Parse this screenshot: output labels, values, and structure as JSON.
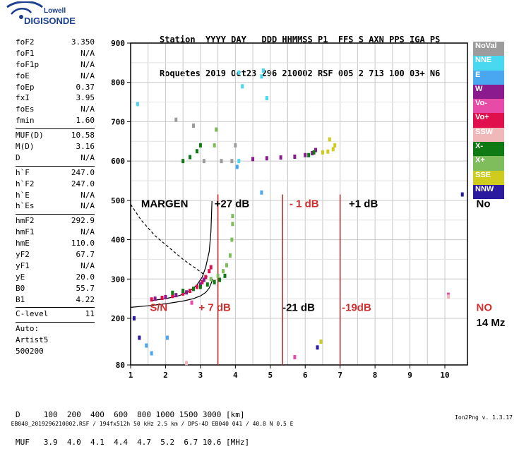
{
  "logo": {
    "line1": "Lowell",
    "line2": "DIGISONDE"
  },
  "header": {
    "line1": "Station  YYYY DAY   DDD HHMMSS P1  FFS S AXN PPS IGA PS",
    "line2": "Roquetes 2019 Oct23 296 210002 RSF 005 2 713 100 03+ N6"
  },
  "params": [
    {
      "name": "foF2",
      "value": "3.350"
    },
    {
      "name": "foF1",
      "value": "N/A"
    },
    {
      "name": "foF1p",
      "value": "N/A"
    },
    {
      "name": "foE",
      "value": "N/A"
    },
    {
      "name": "foEp",
      "value": "0.37"
    },
    {
      "name": "fxI",
      "value": "3.95"
    },
    {
      "name": "foEs",
      "value": "N/A"
    },
    {
      "name": "fmin",
      "value": "1.60"
    },
    {
      "sep": true
    },
    {
      "name": "MUF(D)",
      "value": "10.58"
    },
    {
      "name": "M(D)",
      "value": "3.16"
    },
    {
      "name": "D",
      "value": "N/A"
    },
    {
      "sep": true
    },
    {
      "name": "h`F",
      "value": "247.0"
    },
    {
      "name": "h`F2",
      "value": "247.0"
    },
    {
      "name": "h`E",
      "value": "N/A"
    },
    {
      "name": "h`Es",
      "value": "N/A"
    },
    {
      "sep": true
    },
    {
      "name": "hmF2",
      "value": "292.9"
    },
    {
      "name": "hmF1",
      "value": "N/A"
    },
    {
      "name": "hmE",
      "value": "110.0"
    },
    {
      "name": "yF2",
      "value": "67.7"
    },
    {
      "name": "yF1",
      "value": "N/A"
    },
    {
      "name": "yE",
      "value": "20.0"
    },
    {
      "name": "B0",
      "value": "55.7"
    },
    {
      "name": "B1",
      "value": "4.22"
    },
    {
      "sep": true
    },
    {
      "name": "C-level",
      "value": "11"
    },
    {
      "sep": true
    },
    {
      "name": "Auto:",
      "value": ""
    },
    {
      "name": "Artist5",
      "value": ""
    },
    {
      "name": "500200",
      "value": ""
    }
  ],
  "legend": [
    {
      "label": "NoVal",
      "color": "#9c9c9c"
    },
    {
      "label": "NNE",
      "color": "#48d8f0"
    },
    {
      "label": "E",
      "color": "#49a7f2"
    },
    {
      "label": "W",
      "color": "#8b1a8e"
    },
    {
      "label": "Vo-",
      "color": "#e84aa8"
    },
    {
      "label": "Vo+",
      "color": "#e0104c"
    },
    {
      "label": "SSW",
      "color": "#f0b8b8"
    },
    {
      "label": "X-",
      "color": "#0f7a14"
    },
    {
      "label": "X+",
      "color": "#7ebc5c"
    },
    {
      "label": "SSE",
      "color": "#cfcc1e"
    },
    {
      "label": "NNW",
      "color": "#2a1aa0"
    }
  ],
  "bottom_table": {
    "d_line": "D     100  200  400  600  800 1000 1500 3000 [km]",
    "muf_line": "MUF   3.9  4.0  4.1  4.4  4.7  5.2  6.7 10.6 [MHz]"
  },
  "footer": {
    "left": "EB040_2019296210002.RSF / 194fx512h 50 kHz 2.5 km / DPS-4D EB040 041 / 40.8 N 0.5 E",
    "right": "Ion2Png v. 1.3.17"
  },
  "chart_data": {
    "type": "scatter",
    "x_ticks": [
      1,
      2,
      3,
      4,
      5,
      6,
      7,
      8,
      9,
      10
    ],
    "y_ticks": [
      80,
      200,
      300,
      400,
      500,
      600,
      700,
      800,
      900
    ],
    "x_range": [
      1,
      10.6
    ],
    "y_range": [
      80,
      900
    ],
    "grid": true,
    "vertical_markers": [
      {
        "x": 3.5,
        "color": "#b22222"
      },
      {
        "x": 5.35,
        "color": "#b22222"
      },
      {
        "x": 7.0,
        "color": "#b22222"
      }
    ],
    "annotations": [
      {
        "text": "MARGEN",
        "x": 1.3,
        "y": 483,
        "color": "#000000"
      },
      {
        "text": "+27 dB",
        "x": 3.4,
        "y": 483,
        "color": "#000000"
      },
      {
        "text": "- 1 dB",
        "x": 5.55,
        "y": 483,
        "color": "#d03030"
      },
      {
        "text": "+1 dB",
        "x": 7.25,
        "y": 483,
        "color": "#000000"
      },
      {
        "text": "No",
        "x": 10.9,
        "y": 483,
        "color": "#000000"
      },
      {
        "text": "S/N",
        "x": 1.55,
        "y": 219,
        "color": "#d03030"
      },
      {
        "text": "+ 7 dB",
        "x": 2.95,
        "y": 219,
        "color": "#d03030"
      },
      {
        "text": "-21 dB",
        "x": 5.35,
        "y": 219,
        "color": "#000000"
      },
      {
        "text": "-19dB",
        "x": 7.05,
        "y": 219,
        "color": "#d03030"
      },
      {
        "text": "NO",
        "x": 10.9,
        "y": 219,
        "color": "#d03030"
      },
      {
        "text": "14 Mz",
        "x": 10.9,
        "y": 180,
        "color": "#000000"
      }
    ],
    "profile_curve": [
      {
        "x": 1.0,
        "y": 228
      },
      {
        "x": 1.5,
        "y": 232
      },
      {
        "x": 2.0,
        "y": 237
      },
      {
        "x": 2.5,
        "y": 244
      },
      {
        "x": 2.8,
        "y": 250
      },
      {
        "x": 3.0,
        "y": 257
      },
      {
        "x": 3.15,
        "y": 266
      },
      {
        "x": 3.25,
        "y": 277
      },
      {
        "x": 3.32,
        "y": 292
      },
      {
        "x": 3.35,
        "y": 300
      }
    ],
    "o_trace_curve": [
      {
        "x": 1.6,
        "y": 245
      },
      {
        "x": 2.0,
        "y": 250
      },
      {
        "x": 2.4,
        "y": 258
      },
      {
        "x": 2.7,
        "y": 270
      },
      {
        "x": 2.9,
        "y": 285
      },
      {
        "x": 3.05,
        "y": 305
      },
      {
        "x": 3.15,
        "y": 330
      },
      {
        "x": 3.25,
        "y": 370
      },
      {
        "x": 3.3,
        "y": 420
      },
      {
        "x": 3.33,
        "y": 498
      }
    ],
    "dashed_curve": [
      {
        "x": 1.0,
        "y": 490
      },
      {
        "x": 1.3,
        "y": 450
      },
      {
        "x": 1.7,
        "y": 410
      },
      {
        "x": 2.1,
        "y": 380
      },
      {
        "x": 2.5,
        "y": 350
      },
      {
        "x": 2.9,
        "y": 325
      },
      {
        "x": 3.2,
        "y": 305
      }
    ],
    "series": [
      {
        "polarization": "Vo+",
        "color": "#e0104c",
        "points": [
          {
            "x": 1.6,
            "y": 248
          },
          {
            "x": 1.9,
            "y": 252
          },
          {
            "x": 2.2,
            "y": 257
          },
          {
            "x": 2.5,
            "y": 263
          },
          {
            "x": 2.7,
            "y": 270
          },
          {
            "x": 2.9,
            "y": 280
          },
          {
            "x": 3.05,
            "y": 292
          },
          {
            "x": 3.15,
            "y": 305
          },
          {
            "x": 3.25,
            "y": 320
          },
          {
            "x": 3.3,
            "y": 330
          }
        ]
      },
      {
        "polarization": "W",
        "color": "#8b1a8e",
        "points": [
          {
            "x": 1.7,
            "y": 250
          },
          {
            "x": 2.0,
            "y": 254
          },
          {
            "x": 2.3,
            "y": 259
          },
          {
            "x": 2.6,
            "y": 266
          },
          {
            "x": 2.8,
            "y": 275
          },
          {
            "x": 3.0,
            "y": 286
          },
          {
            "x": 3.1,
            "y": 298
          },
          {
            "x": 4.5,
            "y": 605
          },
          {
            "x": 4.9,
            "y": 607
          },
          {
            "x": 5.3,
            "y": 609
          },
          {
            "x": 5.7,
            "y": 611
          },
          {
            "x": 6.0,
            "y": 615
          },
          {
            "x": 6.2,
            "y": 620
          },
          {
            "x": 6.3,
            "y": 628
          }
        ]
      },
      {
        "polarization": "X-",
        "color": "#0f7a14",
        "points": [
          {
            "x": 2.2,
            "y": 265
          },
          {
            "x": 2.5,
            "y": 270
          },
          {
            "x": 2.8,
            "y": 275
          },
          {
            "x": 3.0,
            "y": 280
          },
          {
            "x": 3.2,
            "y": 286
          },
          {
            "x": 3.4,
            "y": 292
          },
          {
            "x": 3.55,
            "y": 298
          },
          {
            "x": 3.7,
            "y": 308
          },
          {
            "x": 2.5,
            "y": 600
          },
          {
            "x": 2.7,
            "y": 610
          },
          {
            "x": 2.9,
            "y": 625
          },
          {
            "x": 3.0,
            "y": 640
          },
          {
            "x": 6.1,
            "y": 615
          },
          {
            "x": 6.25,
            "y": 622
          }
        ]
      },
      {
        "polarization": "X+",
        "color": "#7ebc5c",
        "points": [
          {
            "x": 3.3,
            "y": 300
          },
          {
            "x": 3.5,
            "y": 308
          },
          {
            "x": 3.65,
            "y": 320
          },
          {
            "x": 3.75,
            "y": 335
          },
          {
            "x": 3.85,
            "y": 360
          },
          {
            "x": 3.9,
            "y": 400
          },
          {
            "x": 3.92,
            "y": 440
          },
          {
            "x": 3.92,
            "y": 460
          },
          {
            "x": 3.4,
            "y": 640
          },
          {
            "x": 3.45,
            "y": 680
          }
        ]
      },
      {
        "polarization": "SSE",
        "color": "#cfcc1e",
        "points": [
          {
            "x": 6.5,
            "y": 622
          },
          {
            "x": 6.65,
            "y": 624
          },
          {
            "x": 6.8,
            "y": 630
          },
          {
            "x": 6.85,
            "y": 640
          },
          {
            "x": 6.7,
            "y": 655
          },
          {
            "x": 6.45,
            "y": 140
          }
        ]
      },
      {
        "polarization": "NNE",
        "color": "#48d8f0",
        "points": [
          {
            "x": 4.1,
            "y": 825
          },
          {
            "x": 4.2,
            "y": 790
          },
          {
            "x": 4.75,
            "y": 815
          },
          {
            "x": 4.8,
            "y": 830
          },
          {
            "x": 1.2,
            "y": 745
          },
          {
            "x": 4.9,
            "y": 760
          },
          {
            "x": 4.1,
            "y": 600
          }
        ]
      },
      {
        "polarization": "E",
        "color": "#49a7f2",
        "points": [
          {
            "x": 4.05,
            "y": 585
          },
          {
            "x": 4.75,
            "y": 520
          },
          {
            "x": 1.45,
            "y": 130
          },
          {
            "x": 1.6,
            "y": 110
          },
          {
            "x": 2.05,
            "y": 150
          }
        ]
      },
      {
        "polarization": "NoVal",
        "color": "#9c9c9c",
        "points": [
          {
            "x": 3.1,
            "y": 600
          },
          {
            "x": 3.6,
            "y": 600
          },
          {
            "x": 3.9,
            "y": 600
          },
          {
            "x": 4.0,
            "y": 640
          },
          {
            "x": 2.8,
            "y": 690
          },
          {
            "x": 2.3,
            "y": 705
          }
        ]
      },
      {
        "polarization": "NNW",
        "color": "#2a1aa0",
        "points": [
          {
            "x": 1.1,
            "y": 200
          },
          {
            "x": 1.25,
            "y": 150
          },
          {
            "x": 10.5,
            "y": 515
          },
          {
            "x": 6.35,
            "y": 125
          }
        ]
      },
      {
        "polarization": "Vo-",
        "color": "#e84aa8",
        "points": [
          {
            "x": 2.75,
            "y": 240
          },
          {
            "x": 5.7,
            "y": 100
          },
          {
            "x": 10.1,
            "y": 260
          }
        ]
      },
      {
        "polarization": "SSW",
        "color": "#f0b8b8",
        "points": [
          {
            "x": 10.1,
            "y": 255
          },
          {
            "x": 2.6,
            "y": 85
          }
        ]
      }
    ]
  }
}
